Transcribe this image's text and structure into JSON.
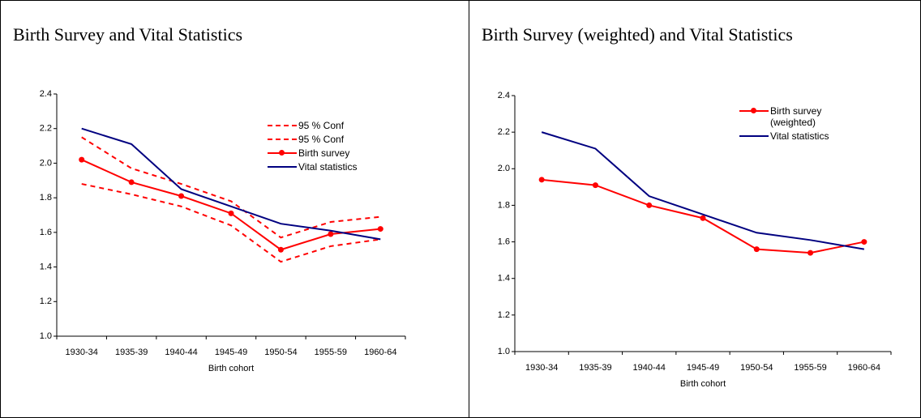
{
  "chart_data": [
    {
      "type": "line",
      "title": "Birth Survey and Vital Statistics",
      "x_label": "Birth cohort",
      "categories": [
        "1930-34",
        "1935-39",
        "1940-44",
        "1945-49",
        "1950-54",
        "1955-59",
        "1960-64"
      ],
      "ylim": [
        1.0,
        2.4
      ],
      "yticks": [
        {
          "value": 1.0,
          "label": "1.0"
        },
        1.2,
        1.4,
        1.6,
        1.8,
        {
          "value": 2.0,
          "label": "2.0"
        },
        2.2,
        2.4
      ],
      "legend": "top-right",
      "series": [
        {
          "name": "95 % Conf",
          "color": "#ff0000",
          "style": "dashed",
          "values": [
            2.15,
            1.97,
            1.88,
            1.78,
            1.57,
            1.66,
            1.69
          ]
        },
        {
          "name": "95 % Conf",
          "color": "#ff0000",
          "style": "dashed",
          "values": [
            1.88,
            1.82,
            1.75,
            1.64,
            1.43,
            1.52,
            1.56
          ]
        },
        {
          "name": "Birth survey",
          "color": "#ff0000",
          "style": "solid",
          "markers": true,
          "values": [
            2.02,
            1.89,
            1.81,
            1.71,
            1.5,
            1.59,
            1.62
          ]
        },
        {
          "name": "Vital statistics",
          "color": "#000080",
          "style": "solid",
          "values": [
            2.2,
            2.11,
            1.85,
            1.75,
            1.65,
            1.61,
            1.56
          ]
        }
      ]
    },
    {
      "type": "line",
      "title": "Birth Survey (weighted) and Vital Statistics",
      "x_label": "Birth cohort",
      "categories": [
        "1930-34",
        "1935-39",
        "1940-44",
        "1945-49",
        "1950-54",
        "1955-59",
        "1960-64"
      ],
      "ylim": [
        1.0,
        2.4
      ],
      "yticks": [
        {
          "value": 1.0,
          "label": "1.0"
        },
        1.2,
        1.4,
        1.6,
        1.8,
        {
          "value": 2.0,
          "label": "2.0"
        },
        2.2,
        2.4
      ],
      "legend": "top-right",
      "series": [
        {
          "name": "Birth survey (weighted)",
          "color": "#ff0000",
          "style": "solid",
          "markers": true,
          "values": [
            1.94,
            1.91,
            1.8,
            1.73,
            1.56,
            1.54,
            1.6
          ]
        },
        {
          "name": "Vital statistics",
          "color": "#000080",
          "style": "solid",
          "values": [
            2.2,
            2.11,
            1.85,
            1.75,
            1.65,
            1.61,
            1.56
          ]
        }
      ]
    }
  ]
}
